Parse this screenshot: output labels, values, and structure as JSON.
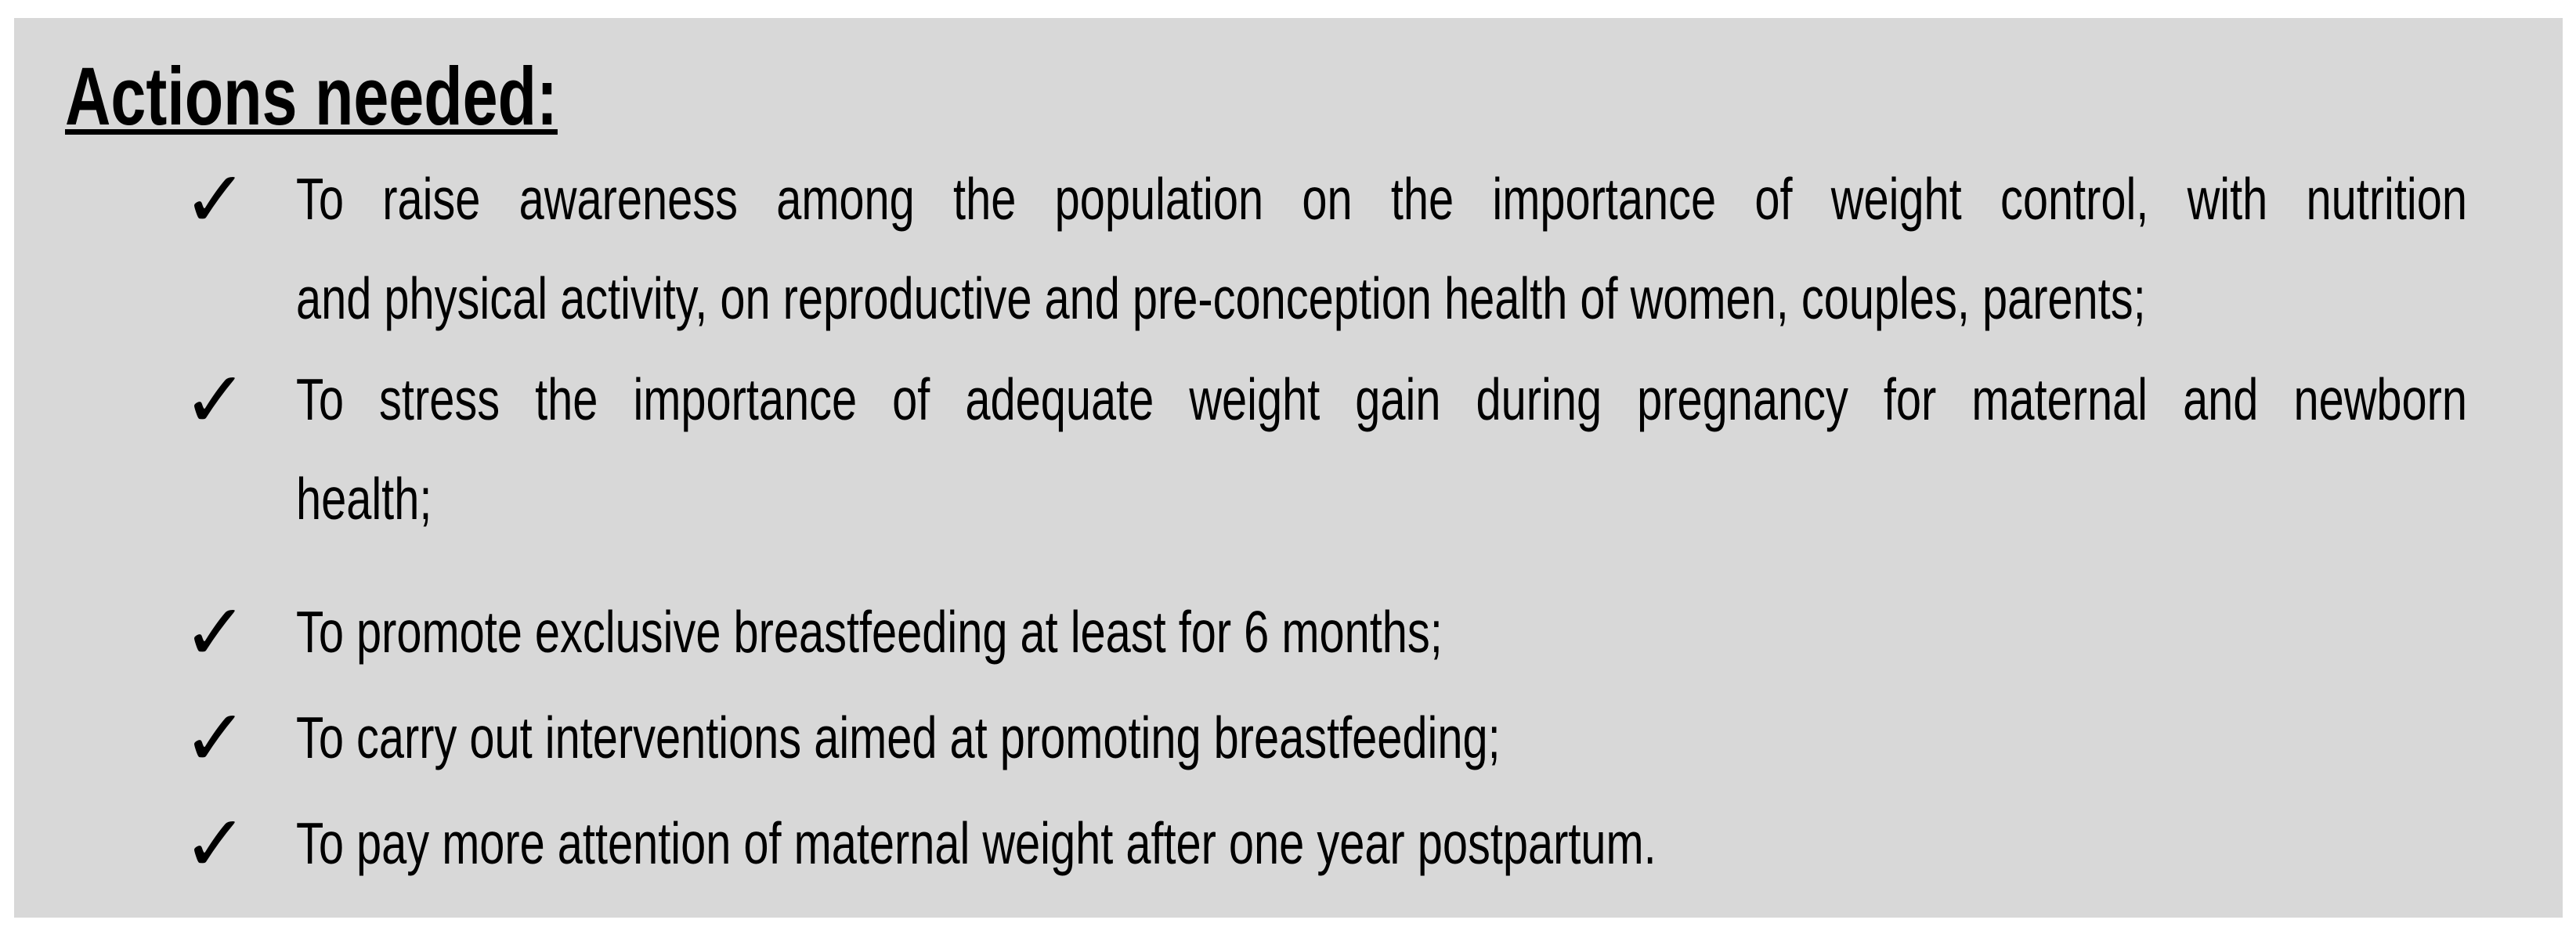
{
  "heading": "Actions needed:",
  "icons": {
    "check": "✓"
  },
  "colors": {
    "page_bg": "#ffffff",
    "box_bg": "#d8d8d8",
    "text": "#000000"
  },
  "list": {
    "items": [
      {
        "lines": [
          "To raise awareness among the population on the importance of weight control, with nutrition",
          "and physical activity, on reproductive and pre-conception health of women, couples, parents;"
        ]
      },
      {
        "lines": [
          "To stress the importance of adequate weight gain during pregnancy for maternal and newborn",
          "health;"
        ]
      },
      {
        "lines": [
          "To promote exclusive breastfeeding at least for 6 months;"
        ]
      },
      {
        "lines": [
          "To carry out interventions aimed at promoting breastfeeding;"
        ]
      },
      {
        "lines": [
          "To pay more attention of maternal weight after one year postpartum."
        ]
      }
    ]
  }
}
